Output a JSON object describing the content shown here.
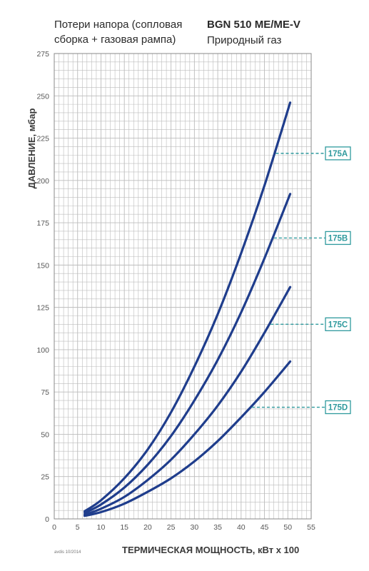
{
  "header": {
    "subtitle_line1": "Потери напора (сопловая",
    "subtitle_line2": "сборка + газовая рампа)",
    "model": "BGN 510 ME/ME-V",
    "gas": "Природный газ"
  },
  "doc_code": "avdis 10/2014",
  "colors": {
    "curve": "#1f3d8c",
    "grid": "#bcbcbc",
    "label": "#2f9a9e"
  },
  "chart_data": {
    "type": "line",
    "xlabel": "ТЕРМИЧЕСКАЯ МОЩНОСТЬ, кВт x 100",
    "ylabel": "ДАВЛЕНИЕ, мбар",
    "xlim": [
      0,
      55
    ],
    "ylim": [
      0,
      275
    ],
    "xticks": [
      0,
      5,
      10,
      15,
      20,
      25,
      30,
      35,
      40,
      45,
      50,
      55
    ],
    "yticks": [
      0,
      25,
      50,
      75,
      100,
      125,
      150,
      175,
      200,
      225,
      250,
      275
    ],
    "grid": true,
    "series": [
      {
        "name": "175A",
        "x": [
          6.5,
          10,
          15,
          20,
          25,
          30,
          35,
          40,
          45,
          50.5
        ],
        "y": [
          4.5,
          11,
          24,
          41,
          63,
          90,
          121,
          157,
          197,
          246
        ],
        "label_y": 216
      },
      {
        "name": "175B",
        "x": [
          6.5,
          10,
          15,
          20,
          25,
          30,
          35,
          40,
          45,
          50.5
        ],
        "y": [
          3.5,
          8.5,
          18.5,
          32,
          49,
          70,
          94,
          122,
          154,
          192
        ],
        "label_y": 166
      },
      {
        "name": "175C",
        "x": [
          6.5,
          10,
          15,
          20,
          25,
          30,
          35,
          40,
          45,
          50.5
        ],
        "y": [
          2.5,
          6,
          13,
          23,
          35,
          50,
          67,
          87,
          110,
          137
        ],
        "label_y": 115
      },
      {
        "name": "175D",
        "x": [
          6.5,
          10,
          15,
          20,
          25,
          30,
          35,
          40,
          45,
          50.5
        ],
        "y": [
          1.8,
          4,
          9,
          16,
          24,
          34,
          46,
          60,
          75,
          93
        ],
        "label_y": 66
      }
    ]
  }
}
